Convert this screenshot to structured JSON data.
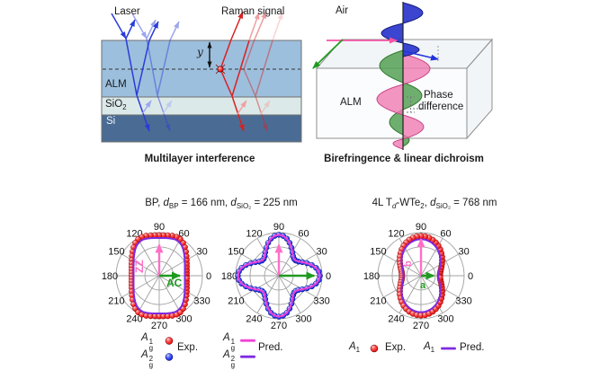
{
  "colors": {
    "laser_blue": "#2a3cd8",
    "laser_blue_light": "#9aa8ee",
    "raman_red": "#d82222",
    "raman_red_light": "#f0a0a0",
    "alm_layer": "#9cbfdd",
    "sio2_layer": "#dce9e9",
    "si_layer": "#4a6c94",
    "layer_border": "#6f6f6f",
    "box_edge": "#8f8f8f",
    "box_face": "#fbfcfd",
    "box_face_side": "#f2f5f8",
    "wave_blue": "#2a35cc",
    "wave_blue_edge": "#141a7a",
    "wave_pink": "#f07ab0",
    "wave_pink_edge": "#c84388",
    "wave_green": "#55a055",
    "wave_green_edge": "#2e7a2e",
    "efield_pink": "#f455a4",
    "proj_green": "#1f9a1f",
    "proj_blue": "#2233dd",
    "grid": "#a0a0a0",
    "exp_red": "#ee1111",
    "exp_red_edge": "#8b0000",
    "exp_blue": "#1525e0",
    "exp_blue_edge": "#00127f",
    "pred_magenta": "#f043d6",
    "pred_violet": "#7e2be0",
    "arrow_pink": "#ff6ec7",
    "arrow_green": "#1f9a1f",
    "si_text": "#eef2f6"
  },
  "interference": {
    "laser_label": "Laser",
    "raman_label": "Raman signal",
    "depth_label": "y",
    "layer_alm": "ALM",
    "layer_sio2": [
      {
        "t": "SiO",
        "s": ""
      },
      {
        "t": "2",
        "s": "sub"
      }
    ],
    "layer_si": "Si",
    "caption": "Multilayer interference"
  },
  "birefringence": {
    "air_label": "Air",
    "alm_label": "ALM",
    "phase_line1": "Phase",
    "phase_line2": "difference",
    "caption": "Birefringence & linear dichroism"
  },
  "polar_section": {
    "title_bp": [
      {
        "t": "BP, ",
        "s": ""
      },
      {
        "t": "d",
        "s": "i"
      },
      {
        "t": "BP",
        "s": "sub"
      },
      {
        "t": " = 166 nm, ",
        "s": ""
      },
      {
        "t": "d",
        "s": "i"
      },
      {
        "t": "SiO₂",
        "s": "sub"
      },
      {
        "t": " = 225 nm",
        "s": ""
      }
    ],
    "title_wte2": [
      {
        "t": "4L T",
        "s": ""
      },
      {
        "t": "d",
        "s": "isub"
      },
      {
        "t": "-WTe",
        "s": ""
      },
      {
        "t": "2",
        "s": "sub"
      },
      {
        "t": ", ",
        "s": ""
      },
      {
        "t": "d",
        "s": "i"
      },
      {
        "t": "SiO₂",
        "s": "sub"
      },
      {
        "t": " = 768 nm",
        "s": ""
      }
    ],
    "plot1_axis_v": "ZZ",
    "plot1_axis_h": "AC",
    "plot3_axis_v": "b",
    "plot3_axis_h": "a"
  },
  "legend_bp": {
    "mode1": [
      {
        "t": "A",
        "s": "i"
      },
      {
        "t": "1|g",
        "s": "stack"
      }
    ],
    "mode2": [
      {
        "t": "A",
        "s": "i"
      },
      {
        "t": "2|g",
        "s": "stack"
      }
    ],
    "exp_label": "Exp.",
    "pred_label": "Pred."
  },
  "legend_wte2": {
    "mode_exp": [
      {
        "t": "A",
        "s": "i"
      },
      {
        "t": "1",
        "s": "sub"
      }
    ],
    "mode_pred": [
      {
        "t": "A",
        "s": "i"
      },
      {
        "t": "1",
        "s": "sub"
      }
    ],
    "exp_label": "Exp.",
    "pred_label": "Pred."
  },
  "chart_data": [
    {
      "type": "polar",
      "panel_title": "BP, dBP = 166 nm, dSiO2 = 225 nm",
      "mode": "Ag1 (BP, ZZ/AC axes)",
      "center": [
        177,
        307
      ],
      "radius_px": 48,
      "ring_fractions": [
        0.333,
        0.667,
        1
      ],
      "spoke_step_deg": 30,
      "angle_labels": [
        0,
        30,
        60,
        90,
        120,
        150,
        180,
        210,
        240,
        270,
        300,
        330
      ],
      "label_radius_px": 55,
      "series": [
        {
          "name": "Ag1 Exp.",
          "kind": "scatter",
          "grad": "gradRed",
          "edge_ref": "exp_red_edge",
          "step_deg": 6,
          "dot_radius": 3,
          "r": [
            0.64,
            0.644,
            0.654,
            0.672,
            0.699,
            0.735,
            0.78,
            0.833,
            0.891,
            0.944,
            0.978,
            0.987,
            0.976,
            0.959,
            0.945,
            0.94,
            0.945,
            0.959,
            0.976,
            0.987,
            0.978,
            0.944,
            0.891,
            0.833,
            0.78,
            0.735,
            0.699,
            0.672,
            0.654,
            0.644,
            0.64,
            0.644,
            0.654,
            0.672,
            0.699,
            0.735,
            0.78,
            0.833,
            0.891,
            0.944,
            0.978,
            0.987,
            0.976,
            0.959,
            0.945,
            0.94,
            0.945,
            0.959,
            0.976,
            0.987,
            0.978,
            0.944,
            0.891,
            0.833,
            0.78,
            0.735,
            0.699,
            0.672,
            0.654,
            0.644
          ]
        },
        {
          "name": "Ag1 Pred.",
          "kind": "line",
          "color_ref": "pred_violet",
          "width": 2,
          "scale": 0.93,
          "step_deg": 6,
          "r": [
            0.64,
            0.644,
            0.654,
            0.672,
            0.699,
            0.735,
            0.78,
            0.833,
            0.891,
            0.944,
            0.978,
            0.987,
            0.976,
            0.959,
            0.945,
            0.94,
            0.945,
            0.959,
            0.976,
            0.987,
            0.978,
            0.944,
            0.891,
            0.833,
            0.78,
            0.735,
            0.699,
            0.672,
            0.654,
            0.644,
            0.64,
            0.644,
            0.654,
            0.672,
            0.699,
            0.735,
            0.78,
            0.833,
            0.891,
            0.944,
            0.978,
            0.987,
            0.976,
            0.959,
            0.945,
            0.94,
            0.945,
            0.959,
            0.976,
            0.987,
            0.978,
            0.944,
            0.891,
            0.833,
            0.78,
            0.735,
            0.699,
            0.672,
            0.654,
            0.644
          ]
        }
      ],
      "arrows": [
        {
          "angle_deg": 90,
          "length_frac": 0.72,
          "color_ref": "arrow_pink",
          "width": 2.4
        },
        {
          "angle_deg": 0,
          "length_frac": 0.48,
          "color_ref": "arrow_green",
          "width": 2.4
        }
      ]
    },
    {
      "type": "polar",
      "panel_title": "BP, dBP = 166 nm, dSiO2 = 225 nm",
      "mode": "Ag2 (BP)",
      "center": [
        310,
        307
      ],
      "radius_px": 48,
      "ring_fractions": [
        0.333,
        0.667,
        1
      ],
      "spoke_step_deg": 30,
      "angle_labels": [
        0,
        30,
        60,
        90,
        120,
        150,
        180,
        210,
        240,
        270,
        300,
        330
      ],
      "label_radius_px": 55,
      "series": [
        {
          "name": "Ag2 Exp.",
          "kind": "scatter",
          "grad": "gradBlue",
          "edge_ref": "exp_blue_edge",
          "step_deg": 6,
          "dot_radius": 3,
          "r": [
            0.95,
            0.931,
            0.879,
            0.801,
            0.713,
            0.628,
            0.561,
            0.525,
            0.525,
            0.561,
            0.628,
            0.713,
            0.801,
            0.879,
            0.931,
            0.95,
            0.931,
            0.879,
            0.801,
            0.713,
            0.628,
            0.561,
            0.525,
            0.525,
            0.561,
            0.628,
            0.713,
            0.801,
            0.879,
            0.931,
            0.95,
            0.931,
            0.879,
            0.801,
            0.713,
            0.628,
            0.561,
            0.525,
            0.525,
            0.561,
            0.628,
            0.713,
            0.801,
            0.879,
            0.931,
            0.95,
            0.931,
            0.879,
            0.801,
            0.713,
            0.628,
            0.561,
            0.525,
            0.525,
            0.561,
            0.628,
            0.713,
            0.801,
            0.879,
            0.931
          ]
        },
        {
          "name": "Ag2 Pred.",
          "kind": "line",
          "color_ref": "pred_magenta",
          "width": 2,
          "scale": 1,
          "step_deg": 6,
          "r": [
            0.95,
            0.931,
            0.879,
            0.801,
            0.713,
            0.628,
            0.561,
            0.525,
            0.525,
            0.561,
            0.628,
            0.713,
            0.801,
            0.879,
            0.931,
            0.95,
            0.931,
            0.879,
            0.801,
            0.713,
            0.628,
            0.561,
            0.525,
            0.525,
            0.561,
            0.628,
            0.713,
            0.801,
            0.879,
            0.931,
            0.95,
            0.931,
            0.879,
            0.801,
            0.713,
            0.628,
            0.561,
            0.525,
            0.525,
            0.561,
            0.628,
            0.713,
            0.801,
            0.879,
            0.931,
            0.95,
            0.931,
            0.879,
            0.801,
            0.713,
            0.628,
            0.561,
            0.525,
            0.525,
            0.561,
            0.628,
            0.713,
            0.801,
            0.879,
            0.931
          ]
        }
      ],
      "arrows": [
        {
          "angle_deg": 90,
          "length_frac": 0.72,
          "color_ref": "arrow_pink",
          "width": 2.4
        },
        {
          "angle_deg": 0,
          "length_frac": 0.82,
          "color_ref": "arrow_green",
          "width": 2.4
        }
      ]
    },
    {
      "type": "polar",
      "panel_title": "4L Td-WTe2, dSiO2 = 768 nm",
      "mode": "A1 (WTe2, a/b axes)",
      "center": [
        468,
        307
      ],
      "radius_px": 48,
      "ring_fractions": [
        0.333,
        0.667,
        1
      ],
      "spoke_step_deg": 30,
      "angle_labels": [
        0,
        30,
        60,
        90,
        120,
        150,
        180,
        210,
        240,
        270,
        300,
        330
      ],
      "label_radius_px": 55,
      "series": [
        {
          "name": "A1 Exp.",
          "kind": "scatter",
          "grad": "gradRed",
          "edge_ref": "exp_red_edge",
          "step_deg": 6,
          "dot_radius": 3.2,
          "r": [
            0.44,
            0.445,
            0.461,
            0.486,
            0.519,
            0.56,
            0.606,
            0.655,
            0.705,
            0.754,
            0.8,
            0.841,
            0.874,
            0.899,
            0.915,
            0.92,
            0.915,
            0.899,
            0.874,
            0.841,
            0.8,
            0.754,
            0.705,
            0.655,
            0.606,
            0.56,
            0.519,
            0.486,
            0.461,
            0.445,
            0.44,
            0.445,
            0.461,
            0.486,
            0.519,
            0.56,
            0.606,
            0.655,
            0.705,
            0.754,
            0.8,
            0.841,
            0.874,
            0.899,
            0.915,
            0.92,
            0.915,
            0.899,
            0.874,
            0.841,
            0.8,
            0.754,
            0.705,
            0.655,
            0.606,
            0.56,
            0.519,
            0.486,
            0.461,
            0.445
          ]
        },
        {
          "name": "A1 Pred.",
          "kind": "line",
          "color_ref": "pred_violet",
          "width": 2,
          "scale": 0.92,
          "step_deg": 6,
          "r": [
            0.44,
            0.445,
            0.461,
            0.486,
            0.519,
            0.56,
            0.606,
            0.655,
            0.705,
            0.754,
            0.8,
            0.841,
            0.874,
            0.899,
            0.915,
            0.92,
            0.915,
            0.899,
            0.874,
            0.841,
            0.8,
            0.754,
            0.705,
            0.655,
            0.606,
            0.56,
            0.519,
            0.486,
            0.461,
            0.445,
            0.44,
            0.445,
            0.461,
            0.486,
            0.519,
            0.56,
            0.606,
            0.655,
            0.705,
            0.754,
            0.8,
            0.841,
            0.874,
            0.899,
            0.915,
            0.92,
            0.915,
            0.899,
            0.874,
            0.841,
            0.8,
            0.754,
            0.705,
            0.655,
            0.606,
            0.56,
            0.519,
            0.486,
            0.461,
            0.445
          ]
        }
      ],
      "arrows": [
        {
          "angle_deg": 90,
          "length_frac": 0.85,
          "color_ref": "arrow_pink",
          "width": 2.4
        },
        {
          "angle_deg": 0,
          "length_frac": 0.3,
          "color_ref": "arrow_green",
          "width": 2.4
        }
      ]
    }
  ]
}
